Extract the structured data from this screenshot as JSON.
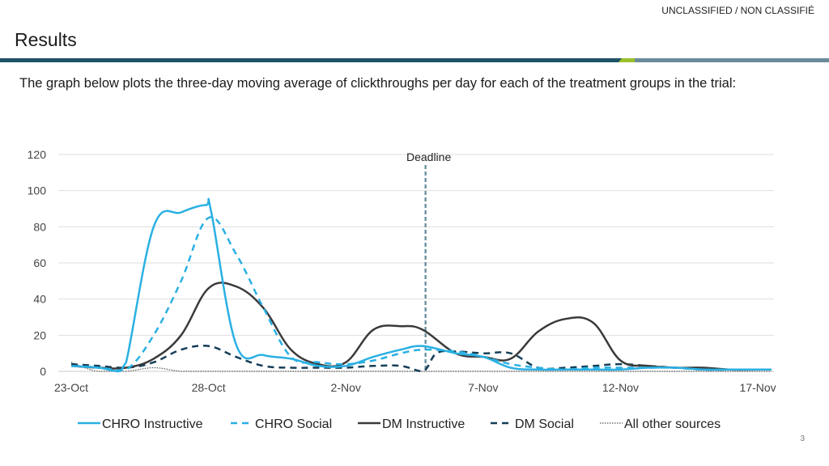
{
  "header": {
    "classification": "UNCLASSIFIED / NON CLASSIFIÉ",
    "title": "Results"
  },
  "intro_text": "The graph below plots the three-day moving average of clickthroughs per day for each of the treatment groups in the trial:",
  "page_number": "3",
  "colors": {
    "chro": "#2ab0e3",
    "dm": "#3a3a3a",
    "dm_social": "#153e57",
    "other": "#555555",
    "deadline": "#5f8a9c",
    "grid": "#dedede",
    "bar": "#1f5368",
    "accent": "#9bbf2a"
  },
  "chart_data": {
    "type": "line",
    "title": "",
    "xlabel": "",
    "ylabel": "",
    "ylim": [
      0,
      120
    ],
    "yticks": [
      0,
      20,
      40,
      60,
      80,
      100,
      120
    ],
    "x_range": [
      0,
      26
    ],
    "xticks": [
      {
        "x": 0,
        "label": "23-Oct"
      },
      {
        "x": 5,
        "label": "28-Oct"
      },
      {
        "x": 10,
        "label": "2-Nov"
      },
      {
        "x": 15,
        "label": "7-Nov"
      },
      {
        "x": 20,
        "label": "12-Nov"
      },
      {
        "x": 25,
        "label": "17-Nov"
      }
    ],
    "annotation": {
      "label": "Deadline",
      "x": 12.9
    },
    "legend_position": "bottom",
    "series": [
      {
        "name": "CHRO Instructive",
        "style": "solid",
        "color": "#2ab0e3",
        "x": [
          0,
          1,
          1.7,
          2,
          3,
          4,
          4.9,
          5.1,
          6,
          7,
          8,
          9,
          10,
          11,
          12,
          12.8,
          14,
          15,
          16,
          17,
          18,
          19,
          20,
          21,
          22,
          23,
          24,
          25,
          25.5
        ],
        "values": [
          3,
          2,
          0,
          5,
          80,
          88,
          92,
          88,
          15,
          9,
          7,
          3,
          3,
          8,
          12,
          14,
          10,
          8,
          2,
          1,
          1,
          1,
          1,
          2,
          2,
          1,
          1,
          1,
          1
        ]
      },
      {
        "name": "CHRO Social",
        "style": "dashed",
        "color": "#2ab0e3",
        "x": [
          0,
          1,
          2,
          3,
          4,
          5,
          6,
          7,
          8,
          9,
          10,
          11,
          12,
          12.8,
          14,
          15,
          16,
          17,
          18,
          19,
          20,
          21,
          22,
          23,
          24,
          25,
          25.5
        ],
        "values": [
          3,
          2,
          1,
          20,
          50,
          85,
          65,
          35,
          8,
          5,
          4,
          6,
          10,
          12,
          11,
          8,
          4,
          2,
          1,
          2,
          2,
          2,
          2,
          1,
          1,
          1,
          1
        ]
      },
      {
        "name": "DM Instructive",
        "style": "solid",
        "color": "#3a3a3a",
        "x": [
          0,
          1,
          2,
          3,
          4,
          5,
          6,
          7,
          8,
          9,
          10,
          11,
          12,
          12.8,
          14,
          15,
          16,
          17,
          18,
          19,
          20,
          21,
          22,
          23,
          24,
          25,
          25.5
        ],
        "values": [
          3,
          2,
          2,
          7,
          20,
          46,
          47,
          35,
          12,
          4,
          5,
          23,
          25,
          23,
          10,
          8,
          7,
          22,
          29,
          27,
          6,
          3,
          2,
          2,
          1,
          1,
          1
        ]
      },
      {
        "name": "DM Social",
        "style": "dashed",
        "color": "#153e57",
        "x": [
          0,
          1,
          2,
          3,
          4,
          5,
          6,
          7,
          8,
          9,
          10,
          11,
          12,
          12.8,
          13.3,
          14,
          15,
          16,
          17,
          18,
          19,
          20,
          21,
          22,
          23,
          24,
          25,
          25.5
        ],
        "values": [
          4,
          3,
          2,
          5,
          12,
          14,
          8,
          3,
          2,
          2,
          2,
          3,
          3,
          0,
          10,
          11,
          10,
          10,
          2,
          2,
          3,
          4,
          3,
          2,
          1,
          1,
          1,
          1
        ]
      },
      {
        "name": "All other sources",
        "style": "dotted",
        "color": "#555555",
        "x": [
          0,
          0.5,
          1,
          2,
          3,
          4,
          5,
          6,
          8,
          10,
          12,
          14,
          16,
          18,
          20,
          22,
          24,
          25,
          25.5
        ],
        "values": [
          5,
          2,
          0,
          0,
          2,
          0,
          0,
          0,
          0,
          0,
          0,
          0,
          0,
          0,
          0,
          0,
          0,
          0,
          0
        ]
      }
    ]
  }
}
